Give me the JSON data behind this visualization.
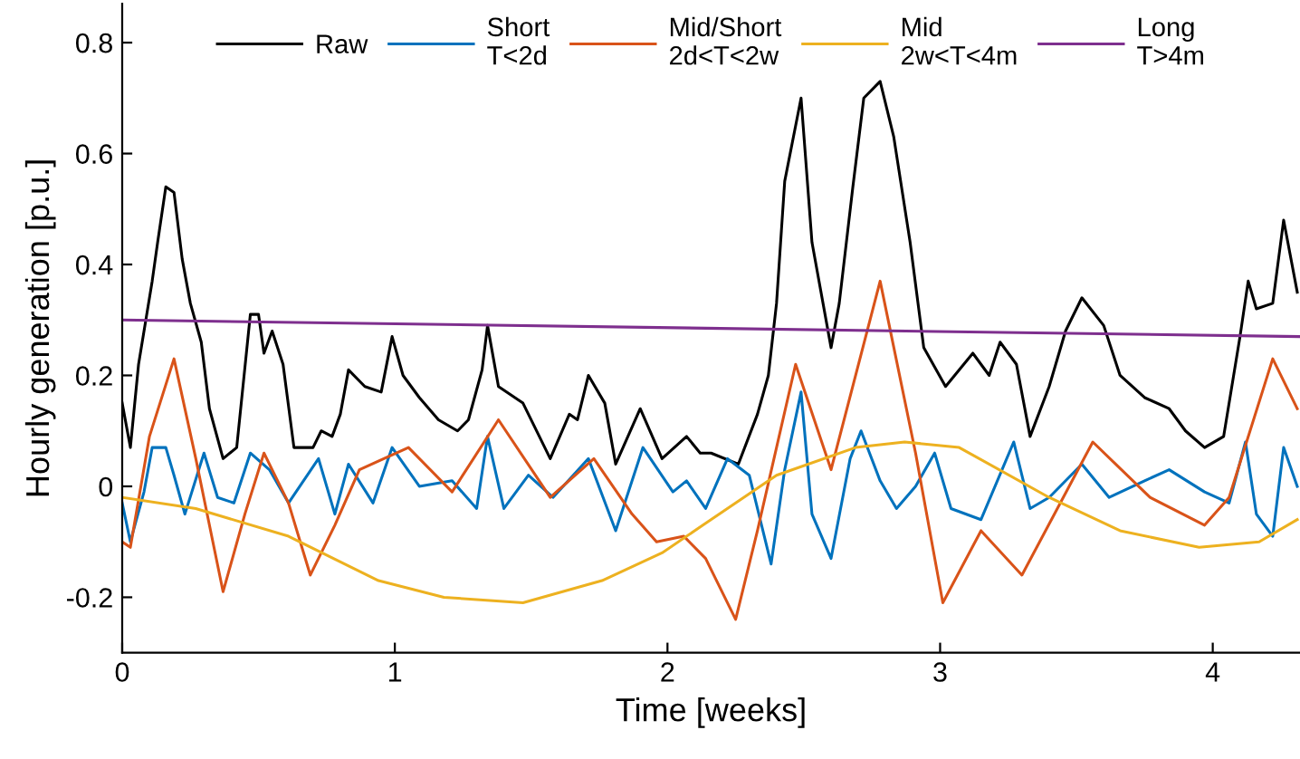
{
  "chart_data": {
    "type": "line",
    "xlabel": "Time [weeks]",
    "ylabel": "Hourly generation [p.u.]",
    "xlim": [
      0,
      4.32
    ],
    "ylim": [
      -0.3,
      0.87
    ],
    "xticks": [
      0,
      1,
      2,
      3,
      4
    ],
    "yticks": [
      {
        "value": -0.2,
        "label": "-0.2"
      },
      0,
      0.2,
      0.4,
      0.6,
      0.8
    ],
    "grid": false,
    "legend": "top",
    "marker": "none",
    "line_style": "solid",
    "series": [
      {
        "name": "Raw",
        "color": "#000000",
        "x": [
          0.0,
          0.03,
          0.06,
          0.11,
          0.13,
          0.16,
          0.19,
          0.22,
          0.25,
          0.29,
          0.32,
          0.37,
          0.42,
          0.47,
          0.5,
          0.52,
          0.55,
          0.59,
          0.63,
          0.7,
          0.73,
          0.77,
          0.8,
          0.83,
          0.89,
          0.95,
          0.99,
          1.03,
          1.09,
          1.16,
          1.23,
          1.27,
          1.32,
          1.34,
          1.38,
          1.47,
          1.57,
          1.64,
          1.67,
          1.71,
          1.77,
          1.81,
          1.9,
          1.98,
          2.07,
          2.12,
          2.16,
          2.26,
          2.33,
          2.37,
          2.4,
          2.43,
          2.49,
          2.53,
          2.6,
          2.63,
          2.68,
          2.72,
          2.78,
          2.83,
          2.89,
          2.94,
          3.02,
          3.12,
          3.18,
          3.22,
          3.28,
          3.33,
          3.4,
          3.46,
          3.52,
          3.6,
          3.66,
          3.75,
          3.84,
          3.9,
          3.97,
          4.04,
          4.1,
          4.13,
          4.16,
          4.22,
          4.26,
          4.31
        ],
        "values": [
          0.15,
          0.07,
          0.22,
          0.37,
          0.44,
          0.54,
          0.53,
          0.41,
          0.33,
          0.26,
          0.14,
          0.05,
          0.07,
          0.31,
          0.31,
          0.24,
          0.28,
          0.22,
          0.07,
          0.07,
          0.1,
          0.09,
          0.13,
          0.21,
          0.18,
          0.17,
          0.27,
          0.2,
          0.16,
          0.12,
          0.1,
          0.12,
          0.21,
          0.29,
          0.18,
          0.15,
          0.05,
          0.13,
          0.12,
          0.2,
          0.15,
          0.04,
          0.14,
          0.05,
          0.09,
          0.06,
          0.06,
          0.04,
          0.13,
          0.2,
          0.33,
          0.55,
          0.7,
          0.44,
          0.25,
          0.33,
          0.54,
          0.7,
          0.73,
          0.63,
          0.44,
          0.25,
          0.18,
          0.24,
          0.2,
          0.26,
          0.22,
          0.09,
          0.18,
          0.28,
          0.34,
          0.29,
          0.2,
          0.16,
          0.14,
          0.1,
          0.07,
          0.09,
          0.27,
          0.37,
          0.32,
          0.33,
          0.48,
          0.35
        ]
      },
      {
        "name": "Short\nT<2d",
        "color": "#0072bd",
        "x": [
          0.0,
          0.03,
          0.08,
          0.11,
          0.16,
          0.19,
          0.23,
          0.3,
          0.35,
          0.41,
          0.47,
          0.54,
          0.61,
          0.72,
          0.78,
          0.83,
          0.92,
          0.99,
          1.09,
          1.21,
          1.3,
          1.34,
          1.4,
          1.49,
          1.58,
          1.71,
          1.81,
          1.91,
          2.02,
          2.07,
          2.14,
          2.22,
          2.3,
          2.38,
          2.43,
          2.49,
          2.53,
          2.6,
          2.67,
          2.71,
          2.78,
          2.84,
          2.91,
          2.98,
          3.04,
          3.15,
          3.27,
          3.33,
          3.4,
          3.52,
          3.62,
          3.75,
          3.84,
          3.97,
          4.06,
          4.12,
          4.16,
          4.22,
          4.26,
          4.31
        ],
        "values": [
          -0.03,
          -0.1,
          -0.01,
          0.07,
          0.07,
          0.02,
          -0.05,
          0.06,
          -0.02,
          -0.03,
          0.06,
          0.03,
          -0.03,
          0.05,
          -0.05,
          0.04,
          -0.03,
          0.07,
          0.0,
          0.01,
          -0.04,
          0.09,
          -0.04,
          0.02,
          -0.02,
          0.05,
          -0.08,
          0.07,
          -0.01,
          0.01,
          -0.04,
          0.05,
          0.02,
          -0.14,
          0.03,
          0.17,
          -0.05,
          -0.13,
          0.05,
          0.1,
          0.01,
          -0.04,
          0.0,
          0.06,
          -0.04,
          -0.06,
          0.08,
          -0.04,
          -0.02,
          0.04,
          -0.02,
          0.01,
          0.03,
          -0.01,
          -0.03,
          0.08,
          -0.05,
          -0.09,
          0.07,
          0.0
        ]
      },
      {
        "name": "Mid/Short\n2d<T<2w",
        "color": "#d95319",
        "x": [
          0.0,
          0.03,
          0.1,
          0.19,
          0.27,
          0.37,
          0.45,
          0.52,
          0.61,
          0.69,
          0.78,
          0.87,
          1.05,
          1.21,
          1.38,
          1.57,
          1.73,
          1.87,
          1.96,
          2.06,
          2.14,
          2.25,
          2.33,
          2.47,
          2.6,
          2.78,
          2.91,
          3.01,
          3.15,
          3.3,
          3.56,
          3.77,
          3.97,
          4.06,
          4.22,
          4.31
        ],
        "values": [
          -0.1,
          -0.11,
          0.09,
          0.23,
          0.05,
          -0.19,
          -0.05,
          0.06,
          -0.03,
          -0.16,
          -0.07,
          0.03,
          0.07,
          -0.01,
          0.12,
          -0.02,
          0.05,
          -0.05,
          -0.1,
          -0.09,
          -0.13,
          -0.24,
          -0.08,
          0.22,
          0.03,
          0.37,
          0.06,
          -0.21,
          -0.08,
          -0.16,
          0.08,
          -0.02,
          -0.07,
          -0.02,
          0.23,
          0.14
        ]
      },
      {
        "name": "Mid\n2w<T<4m",
        "color": "#edb120",
        "x": [
          0.0,
          0.27,
          0.61,
          0.94,
          1.18,
          1.47,
          1.76,
          1.98,
          2.13,
          2.4,
          2.69,
          2.87,
          3.07,
          3.4,
          3.66,
          3.95,
          4.17,
          4.31
        ],
        "values": [
          -0.02,
          -0.04,
          -0.09,
          -0.17,
          -0.2,
          -0.21,
          -0.17,
          -0.12,
          -0.07,
          0.02,
          0.07,
          0.08,
          0.07,
          -0.02,
          -0.08,
          -0.11,
          -0.1,
          -0.06
        ]
      },
      {
        "name": "Long\nT>4m",
        "color": "#7e2f8e",
        "x": [
          0.0,
          4.32
        ],
        "values": [
          0.3,
          0.27
        ]
      }
    ]
  }
}
